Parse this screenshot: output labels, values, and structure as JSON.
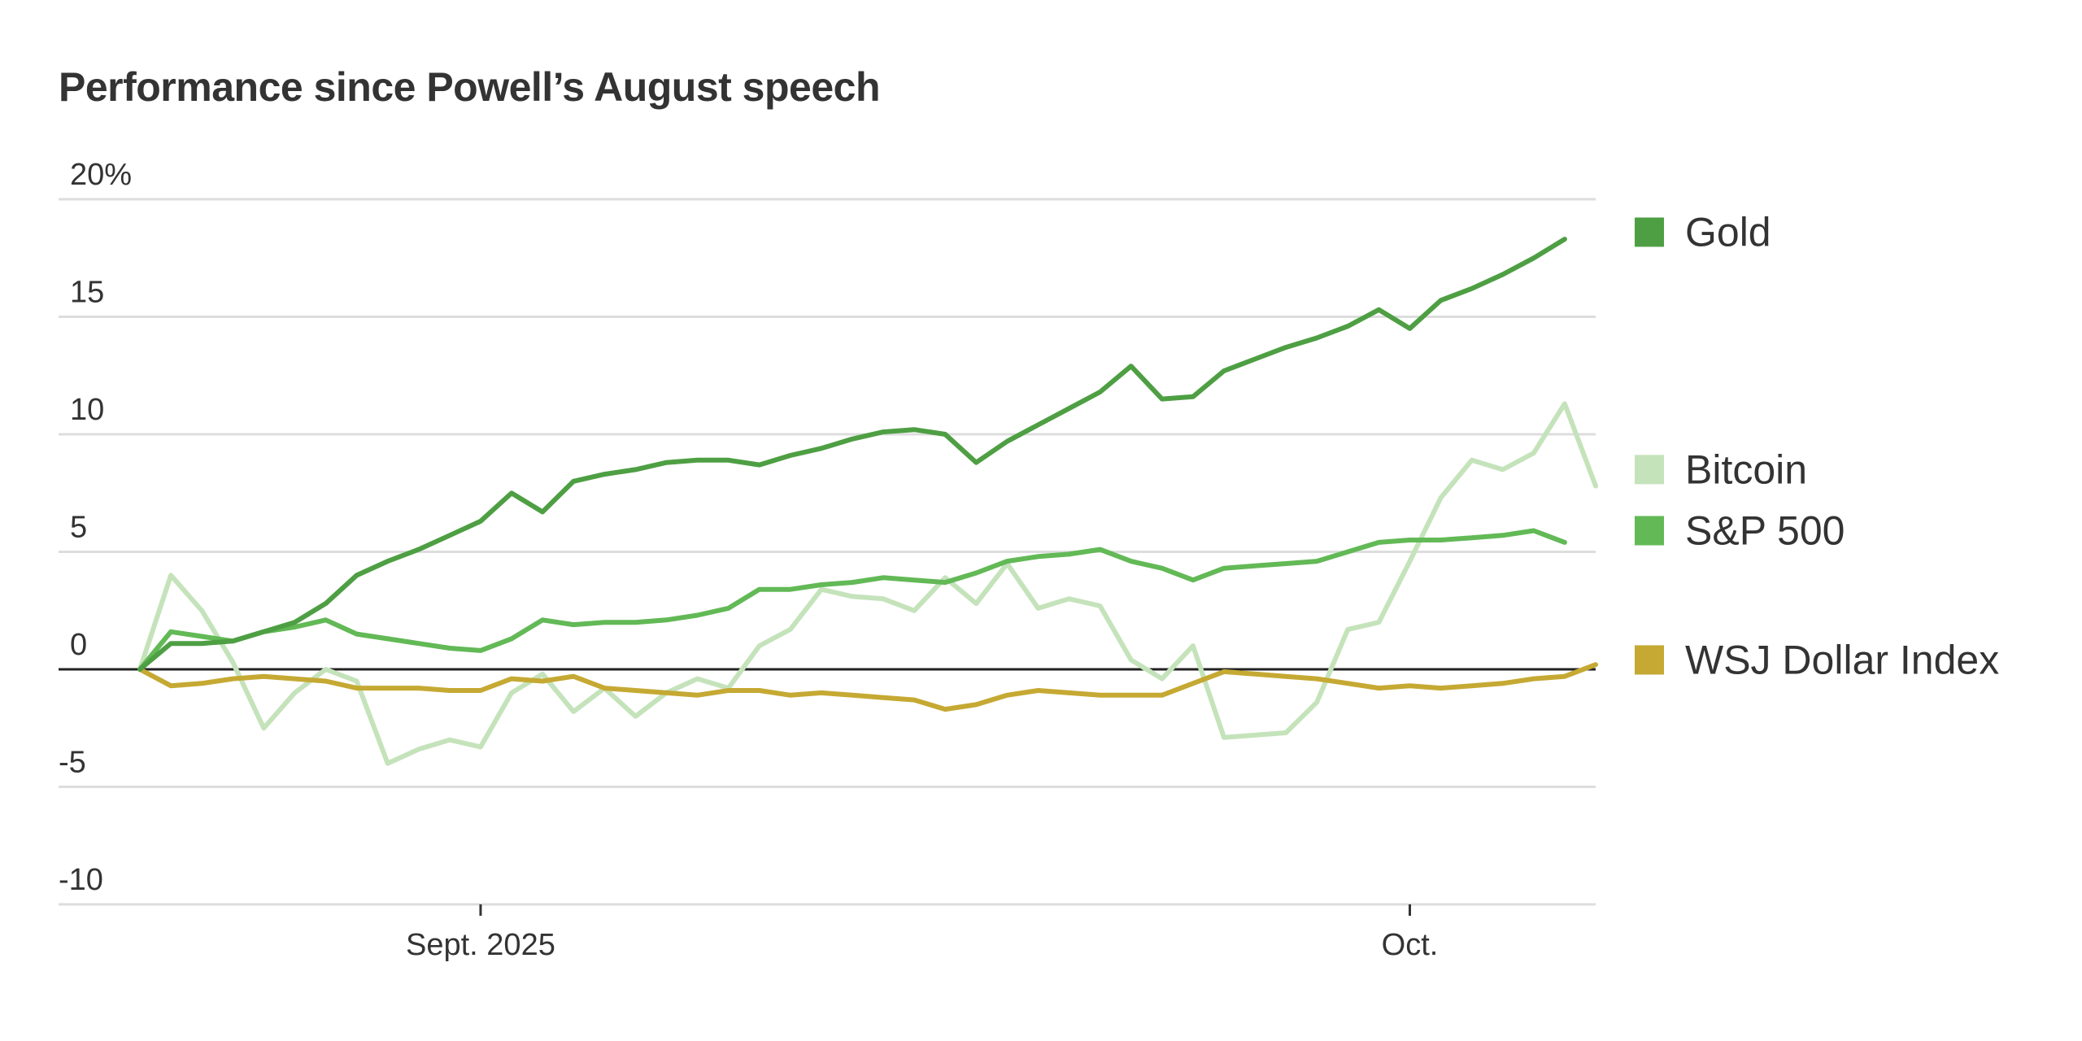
{
  "chart_data": {
    "type": "line",
    "title": "Performance since Powell’s August speech",
    "xlabel": "",
    "ylabel": "",
    "ylim": [
      -10,
      20
    ],
    "yticks": [
      {
        "value": 20,
        "label": "20%"
      },
      {
        "value": 15,
        "label": "15"
      },
      {
        "value": 10,
        "label": "10"
      },
      {
        "value": 5,
        "label": "5"
      },
      {
        "value": 0,
        "label": "0"
      },
      {
        "value": -5,
        "label": "-5"
      },
      {
        "value": -10,
        "label": "-10"
      }
    ],
    "xlim": [
      0,
      47
    ],
    "xticks": [
      {
        "value": 11,
        "label": "Sept. 2025"
      },
      {
        "value": 41,
        "label": "Oct."
      }
    ],
    "legend_position": "right",
    "series": [
      {
        "name": "Gold",
        "color": "#4e9f43",
        "values": [
          [
            0,
            0.0
          ],
          [
            1,
            1.1
          ],
          [
            2,
            1.1
          ],
          [
            3,
            1.2
          ],
          [
            4,
            1.6
          ],
          [
            5,
            2.0
          ],
          [
            6,
            2.8
          ],
          [
            7,
            4.0
          ],
          [
            8,
            4.6
          ],
          [
            9,
            5.1
          ],
          [
            10,
            5.7
          ],
          [
            11,
            6.3
          ],
          [
            12,
            7.5
          ],
          [
            13,
            6.7
          ],
          [
            14,
            8.0
          ],
          [
            15,
            8.3
          ],
          [
            16,
            8.5
          ],
          [
            17,
            8.8
          ],
          [
            18,
            8.9
          ],
          [
            19,
            8.9
          ],
          [
            20,
            8.7
          ],
          [
            21,
            9.1
          ],
          [
            22,
            9.4
          ],
          [
            23,
            9.8
          ],
          [
            24,
            10.1
          ],
          [
            25,
            10.2
          ],
          [
            26,
            10.0
          ],
          [
            27,
            8.8
          ],
          [
            28,
            9.7
          ],
          [
            29,
            10.4
          ],
          [
            30,
            11.1
          ],
          [
            31,
            11.8
          ],
          [
            32,
            12.9
          ],
          [
            33,
            11.5
          ],
          [
            34,
            11.6
          ],
          [
            35,
            12.7
          ],
          [
            36,
            13.2
          ],
          [
            37,
            13.7
          ],
          [
            38,
            14.1
          ],
          [
            39,
            14.6
          ],
          [
            40,
            15.3
          ],
          [
            41,
            14.5
          ],
          [
            42,
            15.7
          ],
          [
            43,
            16.2
          ],
          [
            44,
            16.8
          ],
          [
            45,
            17.5
          ],
          [
            46,
            18.3
          ]
        ]
      },
      {
        "name": "Bitcoin",
        "color": "#c5e3bb",
        "values": [
          [
            0,
            0.0
          ],
          [
            1,
            4.0
          ],
          [
            2,
            2.5
          ],
          [
            3,
            0.3
          ],
          [
            4,
            -2.5
          ],
          [
            5,
            -1.0
          ],
          [
            6,
            0.0
          ],
          [
            7,
            -0.5
          ],
          [
            8,
            -4.0
          ],
          [
            9,
            -3.4
          ],
          [
            10,
            -3.0
          ],
          [
            11,
            -3.3
          ],
          [
            12,
            -1.0
          ],
          [
            13,
            -0.2
          ],
          [
            14,
            -1.8
          ],
          [
            15,
            -0.8
          ],
          [
            16,
            -2.0
          ],
          [
            17,
            -1.0
          ],
          [
            18,
            -0.4
          ],
          [
            19,
            -0.8
          ],
          [
            20,
            1.0
          ],
          [
            21,
            1.7
          ],
          [
            22,
            3.4
          ],
          [
            23,
            3.1
          ],
          [
            24,
            3.0
          ],
          [
            25,
            2.5
          ],
          [
            26,
            3.9
          ],
          [
            27,
            2.8
          ],
          [
            28,
            4.5
          ],
          [
            29,
            2.6
          ],
          [
            30,
            3.0
          ],
          [
            31,
            2.7
          ],
          [
            32,
            0.4
          ],
          [
            33,
            -0.4
          ],
          [
            34,
            1.0
          ],
          [
            35,
            -2.9
          ],
          [
            36,
            -2.8
          ],
          [
            37,
            -2.7
          ],
          [
            38,
            -1.4
          ],
          [
            39,
            1.7
          ],
          [
            40,
            2.0
          ],
          [
            41,
            4.6
          ],
          [
            42,
            7.3
          ],
          [
            43,
            8.9
          ],
          [
            44,
            8.5
          ],
          [
            45,
            9.2
          ],
          [
            46,
            11.3
          ],
          [
            47,
            7.8
          ]
        ]
      },
      {
        "name": "S&P 500",
        "color": "#62b956",
        "values": [
          [
            0,
            0.0
          ],
          [
            1,
            1.6
          ],
          [
            2,
            1.4
          ],
          [
            3,
            1.2
          ],
          [
            4,
            1.6
          ],
          [
            5,
            1.8
          ],
          [
            6,
            2.1
          ],
          [
            7,
            1.5
          ],
          [
            8,
            1.3
          ],
          [
            9,
            1.1
          ],
          [
            10,
            0.9
          ],
          [
            11,
            0.8
          ],
          [
            12,
            1.3
          ],
          [
            13,
            2.1
          ],
          [
            14,
            1.9
          ],
          [
            15,
            2.0
          ],
          [
            16,
            2.0
          ],
          [
            17,
            2.1
          ],
          [
            18,
            2.3
          ],
          [
            19,
            2.6
          ],
          [
            20,
            3.4
          ],
          [
            21,
            3.4
          ],
          [
            22,
            3.6
          ],
          [
            23,
            3.7
          ],
          [
            24,
            3.9
          ],
          [
            25,
            3.8
          ],
          [
            26,
            3.7
          ],
          [
            27,
            4.1
          ],
          [
            28,
            4.6
          ],
          [
            29,
            4.8
          ],
          [
            30,
            4.9
          ],
          [
            31,
            5.1
          ],
          [
            32,
            4.6
          ],
          [
            33,
            4.3
          ],
          [
            34,
            3.8
          ],
          [
            35,
            4.3
          ],
          [
            36,
            4.4
          ],
          [
            37,
            4.5
          ],
          [
            38,
            4.6
          ],
          [
            39,
            5.0
          ],
          [
            40,
            5.4
          ],
          [
            41,
            5.5
          ],
          [
            42,
            5.5
          ],
          [
            43,
            5.6
          ],
          [
            44,
            5.7
          ],
          [
            45,
            5.9
          ],
          [
            46,
            5.4
          ]
        ]
      },
      {
        "name": "WSJ Dollar Index",
        "color": "#c5a933",
        "values": [
          [
            0,
            0.0
          ],
          [
            1,
            -0.7
          ],
          [
            2,
            -0.6
          ],
          [
            3,
            -0.4
          ],
          [
            4,
            -0.3
          ],
          [
            5,
            -0.4
          ],
          [
            6,
            -0.5
          ],
          [
            7,
            -0.8
          ],
          [
            8,
            -0.8
          ],
          [
            9,
            -0.8
          ],
          [
            10,
            -0.9
          ],
          [
            11,
            -0.9
          ],
          [
            12,
            -0.4
          ],
          [
            13,
            -0.5
          ],
          [
            14,
            -0.3
          ],
          [
            15,
            -0.8
          ],
          [
            16,
            -0.9
          ],
          [
            17,
            -1.0
          ],
          [
            18,
            -1.1
          ],
          [
            19,
            -0.9
          ],
          [
            20,
            -0.9
          ],
          [
            21,
            -1.1
          ],
          [
            22,
            -1.0
          ],
          [
            23,
            -1.1
          ],
          [
            24,
            -1.2
          ],
          [
            25,
            -1.3
          ],
          [
            26,
            -1.7
          ],
          [
            27,
            -1.5
          ],
          [
            28,
            -1.1
          ],
          [
            29,
            -0.9
          ],
          [
            30,
            -1.0
          ],
          [
            31,
            -1.1
          ],
          [
            32,
            -1.1
          ],
          [
            33,
            -1.1
          ],
          [
            34,
            -0.6
          ],
          [
            35,
            -0.1
          ],
          [
            36,
            -0.2
          ],
          [
            37,
            -0.3
          ],
          [
            38,
            -0.4
          ],
          [
            39,
            -0.6
          ],
          [
            40,
            -0.8
          ],
          [
            41,
            -0.7
          ],
          [
            42,
            -0.8
          ],
          [
            43,
            -0.7
          ],
          [
            44,
            -0.6
          ],
          [
            45,
            -0.4
          ],
          [
            46,
            -0.3
          ],
          [
            47,
            0.2
          ]
        ]
      }
    ],
    "legend": [
      {
        "name": "Gold",
        "color": "#4e9f43",
        "anchor_value": 18.6
      },
      {
        "name": "Bitcoin",
        "color": "#c5e3bb",
        "anchor_value": 8.5
      },
      {
        "name": "S&P 500",
        "color": "#62b956",
        "anchor_value": 5.9
      },
      {
        "name": "WSJ Dollar Index",
        "color": "#c5a933",
        "anchor_value": 0.4
      }
    ]
  }
}
